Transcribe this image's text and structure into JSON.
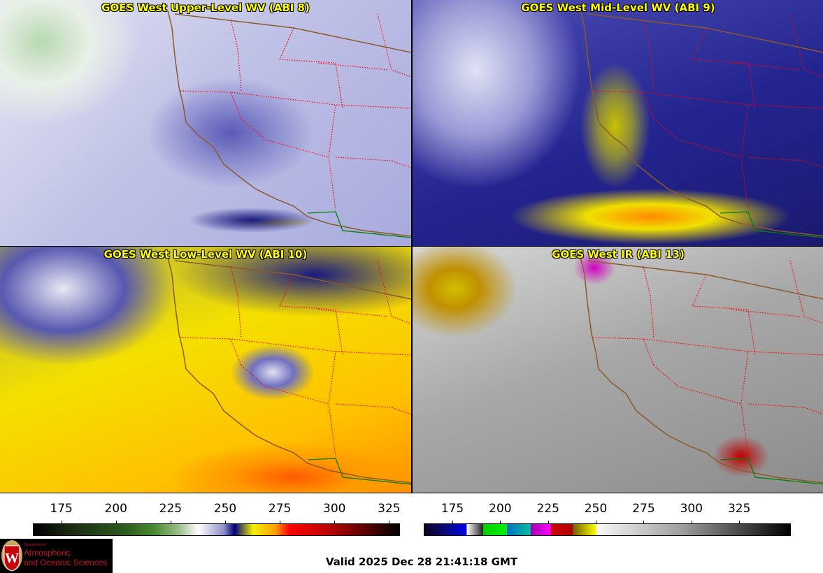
{
  "panels": [
    {
      "title": "GOES West Upper-Level WV (ABI 8)"
    },
    {
      "title": "GOES West Mid-Level WV (ABI 9)"
    },
    {
      "title": "GOES West Low-Level WV (ABI 10)"
    },
    {
      "title": "GOES West IR (ABI 13)"
    }
  ],
  "colorbars": [
    {
      "name": "water-vapor",
      "range": [
        162,
        330
      ],
      "ticks": [
        "175",
        "200",
        "225",
        "250",
        "275",
        "300",
        "325"
      ]
    },
    {
      "name": "infrared",
      "range": [
        160,
        352
      ],
      "ticks": [
        "175",
        "200",
        "225",
        "250",
        "275",
        "300",
        "325"
      ]
    }
  ],
  "logo": {
    "dept": "Department of",
    "line1": "Atmospheric",
    "line2": "and Oceanic Sciences",
    "seal_letter": "W"
  },
  "valid_time": "Valid 2025 Dec 28 21:41:18 GMT",
  "colors": {
    "title": "#ffff00",
    "state_border": "#ff0000",
    "coastline": "#8b5a2b",
    "mexico_border": "#008000"
  }
}
